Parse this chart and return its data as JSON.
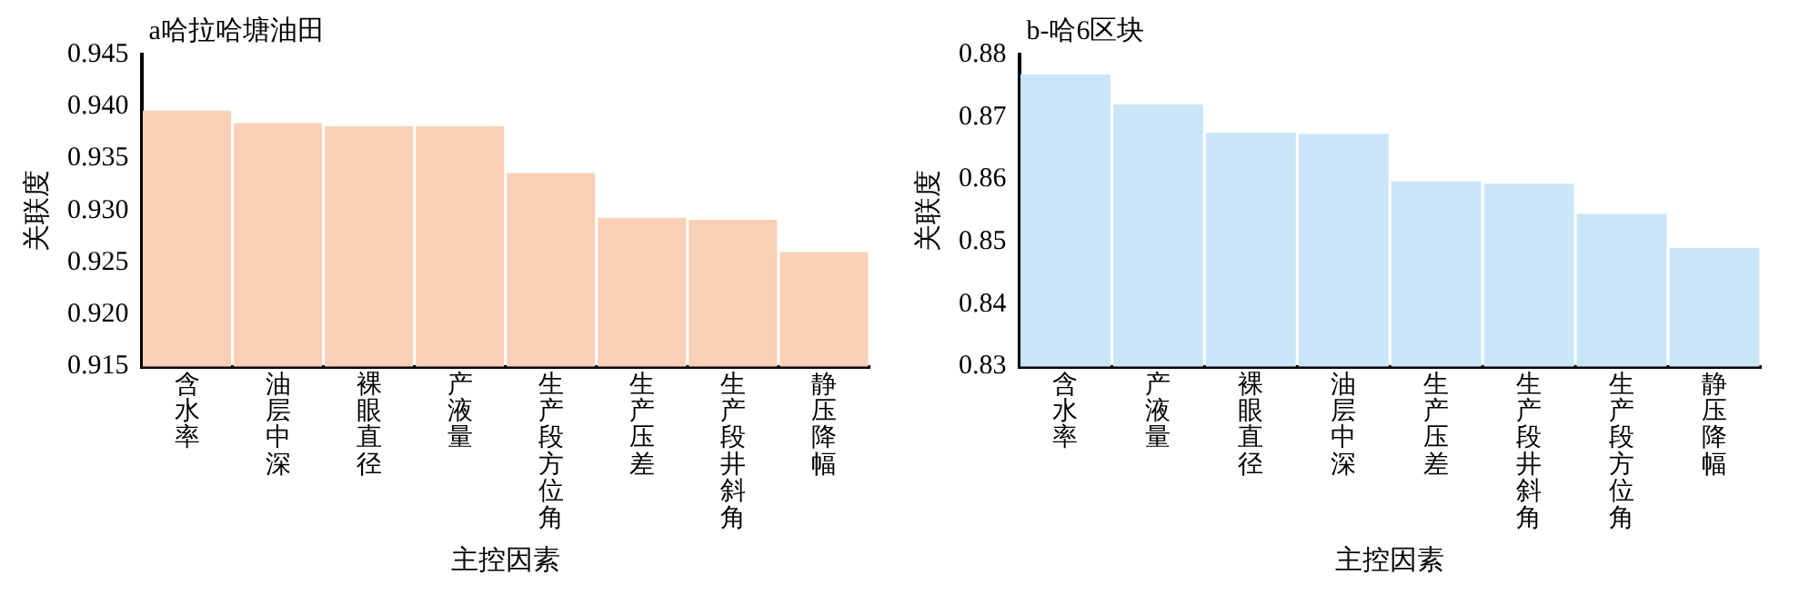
{
  "chart_data": [
    {
      "type": "bar",
      "title": "a哈拉哈塘油田",
      "xlabel": "主控因素",
      "ylabel": "关联度",
      "categories": [
        "含水率",
        "油层中深",
        "裸眼直径",
        "产液量",
        "生产段方位角",
        "生产压差",
        "生产段井斜角",
        "静压降幅"
      ],
      "values": [
        0.9396,
        0.9384,
        0.9381,
        0.9381,
        0.9336,
        0.9293,
        0.9291,
        0.926
      ],
      "color": "#f9d0b7",
      "ylim": [
        0.915,
        0.945
      ],
      "yticks": [
        {
          "value": 0.915,
          "label": "0.915"
        },
        {
          "value": 0.92,
          "label": "0.920"
        },
        {
          "value": 0.925,
          "label": "0.925"
        },
        {
          "value": 0.93,
          "label": "0.930"
        },
        {
          "value": 0.935,
          "label": "0.935"
        },
        {
          "value": 0.94,
          "label": "0.940"
        },
        {
          "value": 0.945,
          "label": "0.945"
        }
      ],
      "grid": false,
      "legend": false
    },
    {
      "type": "bar",
      "title": "b-哈6区块",
      "xlabel": "主控因素",
      "ylabel": "关联度",
      "categories": [
        "含水率",
        "产液量",
        "裸眼直径",
        "油层中深",
        "生产压差",
        "生产段井斜角",
        "生产段方位角",
        "静压降幅"
      ],
      "values": [
        0.8768,
        0.872,
        0.8675,
        0.8673,
        0.8597,
        0.8593,
        0.8545,
        0.849
      ],
      "color": "#c9e6f8",
      "ylim": [
        0.83,
        0.88
      ],
      "yticks": [
        {
          "value": 0.83,
          "label": "0.83"
        },
        {
          "value": 0.84,
          "label": "0.84"
        },
        {
          "value": 0.85,
          "label": "0.85"
        },
        {
          "value": 0.86,
          "label": "0.86"
        },
        {
          "value": 0.87,
          "label": "0.87"
        },
        {
          "value": 0.88,
          "label": "0.88"
        }
      ],
      "grid": false,
      "legend": false
    }
  ]
}
